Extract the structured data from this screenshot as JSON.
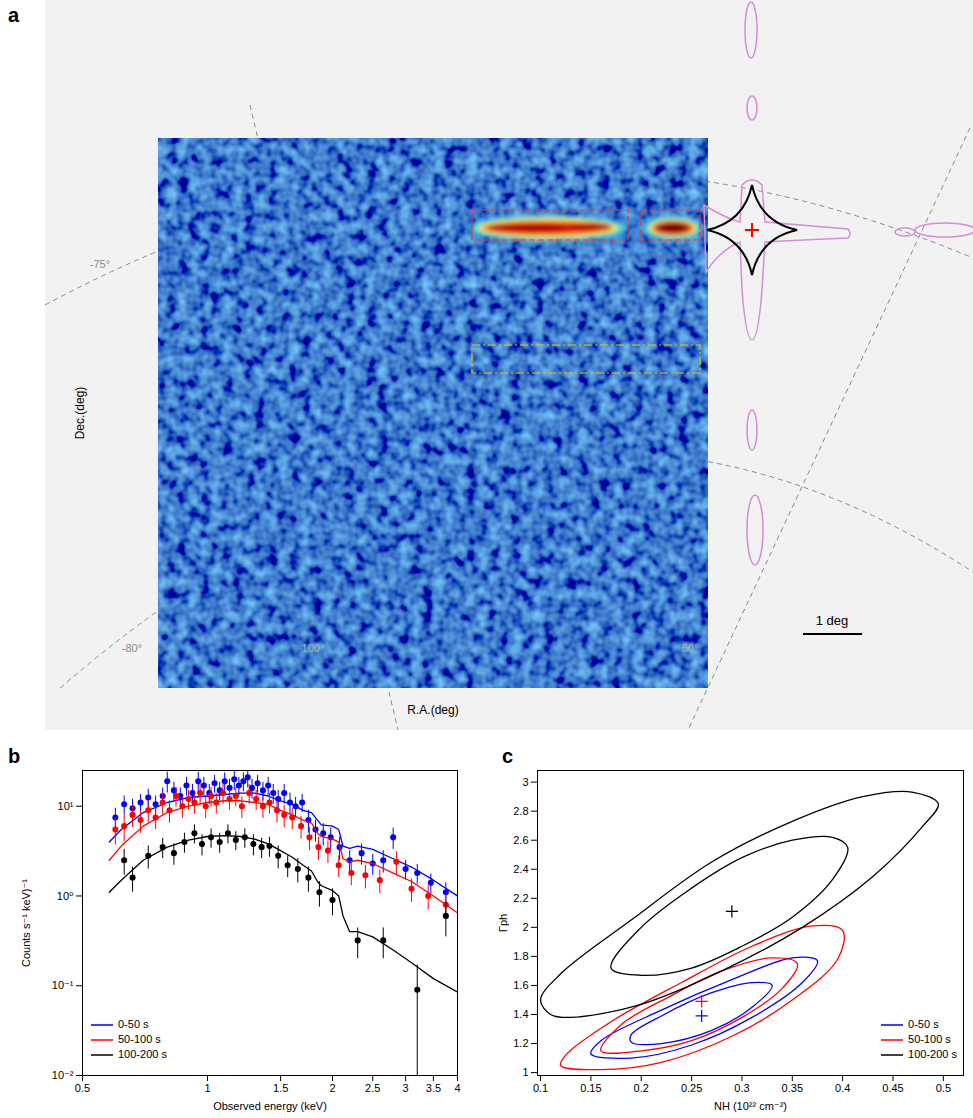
{
  "chart_data": [
    {
      "panel": "a",
      "type": "image",
      "xlabel": "R.A.(deg)",
      "ylabel": "Dec.(deg)",
      "annotations": [
        "-75°",
        "-80°",
        "100°",
        "50°"
      ],
      "scale_bar": "1 deg"
    },
    {
      "panel": "b",
      "type": "scatter",
      "xlabel": "Observed energy (keV)",
      "ylabel": "Counts s⁻¹ keV)⁻¹",
      "log": true,
      "xlim": [
        0.5,
        4
      ],
      "ylim": [
        0.01,
        25
      ],
      "xticks": [
        0.5,
        1,
        1.5,
        2,
        2.5,
        3,
        3.5,
        4
      ],
      "yticks": [
        {
          "value": 0.01,
          "label": "10⁻²"
        },
        {
          "value": 0.1,
          "label": "10⁻¹"
        },
        {
          "value": 1,
          "label": "10⁰"
        },
        {
          "value": 10,
          "label": "10¹"
        }
      ],
      "legend": "bottom-left",
      "marker": "circle",
      "series": [
        {
          "name": "0-50 s",
          "color": "#0000ff",
          "x": [
            0.6,
            0.63,
            0.66,
            0.69,
            0.72,
            0.75,
            0.78,
            0.8,
            0.83,
            0.86,
            0.89,
            0.92,
            0.95,
            0.98,
            1.01,
            1.04,
            1.07,
            1.1,
            1.13,
            1.16,
            1.19,
            1.22,
            1.25,
            1.28,
            1.32,
            1.36,
            1.4,
            1.44,
            1.48,
            1.53,
            1.58,
            1.63,
            1.69,
            1.75,
            1.82,
            1.9,
            1.98,
            2.08,
            2.2,
            2.35,
            2.5,
            2.65,
            2.8,
            3.0,
            3.2,
            3.45,
            3.75
          ],
          "values": [
            7.5,
            10.5,
            9.5,
            11,
            12.5,
            10.5,
            13,
            19,
            15,
            13,
            17,
            14,
            19,
            17,
            14,
            18,
            15,
            19,
            16,
            20,
            17,
            19,
            21,
            16,
            18,
            15,
            17,
            14,
            12,
            14,
            11,
            10,
            11,
            7,
            5.5,
            5,
            4.5,
            3.5,
            2.5,
            3.0,
            2.3,
            2.5,
            4.5,
            2.0,
            1.8,
            1.4,
            1.1
          ],
          "yerr": [
            2,
            2.5,
            2.5,
            2.5,
            3,
            2.5,
            3,
            5,
            3.5,
            3,
            4,
            3.5,
            5,
            4,
            3.5,
            4,
            3.5,
            4.5,
            4,
            5,
            4,
            4.5,
            5,
            4,
            4,
            3.5,
            4,
            3.5,
            3,
            3.5,
            3,
            2.5,
            2.5,
            2,
            1.5,
            1.4,
            1.2,
            1,
            0.7,
            0.8,
            0.6,
            0.7,
            1.2,
            0.5,
            0.45,
            0.35,
            0.3
          ],
          "model": {
            "x": [
              0.58,
              0.62,
              0.7,
              0.8,
              0.9,
              1.0,
              1.1,
              1.2,
              1.3,
              1.4,
              1.5,
              1.6,
              1.7,
              1.78,
              1.84,
              1.88,
              2.0,
              2.07,
              2.12,
              2.2,
              2.3,
              2.5,
              2.8,
              3.1,
              3.5,
              4.0
            ],
            "values": [
              4,
              5.5,
              8.5,
              11,
              12.5,
              13,
              13.5,
              14,
              14,
              13,
              11.5,
              10.5,
              9,
              8.5,
              7.0,
              6.2,
              6.0,
              5.5,
              3.6,
              3.4,
              3.6,
              3.3,
              2.6,
              2.1,
              1.5,
              1.0
            ]
          }
        },
        {
          "name": "50-100 s",
          "color": "#ff0000",
          "x": [
            0.6,
            0.63,
            0.66,
            0.69,
            0.72,
            0.75,
            0.78,
            0.81,
            0.84,
            0.87,
            0.9,
            0.93,
            0.96,
            0.99,
            1.02,
            1.05,
            1.09,
            1.13,
            1.17,
            1.21,
            1.26,
            1.31,
            1.36,
            1.41,
            1.47,
            1.53,
            1.6,
            1.68,
            1.76,
            1.85,
            1.95,
            2.07,
            2.22,
            2.4,
            2.6,
            2.85,
            3.1,
            3.4,
            3.75
          ],
          "values": [
            5.5,
            6,
            8,
            7,
            9,
            7.5,
            11,
            9,
            13,
            10,
            12,
            11,
            14,
            10,
            13,
            11,
            14,
            12,
            13,
            10,
            14,
            12,
            10,
            11,
            9,
            8,
            7.5,
            6,
            4.5,
            3.5,
            3.2,
            2.2,
            1.8,
            1.7,
            1.5,
            2.4,
            1.2,
            1.0,
            0.8
          ],
          "yerr": [
            1.8,
            2,
            2.2,
            2,
            2.5,
            2,
            3,
            2.5,
            3.2,
            2.7,
            3,
            2.8,
            3.5,
            2.7,
            3.2,
            2.8,
            3.5,
            3,
            3.2,
            2.7,
            3.5,
            3,
            2.7,
            2.8,
            2.5,
            2.2,
            2,
            1.7,
            1.3,
            1,
            0.9,
            0.6,
            0.5,
            0.5,
            0.45,
            0.7,
            0.35,
            0.3,
            0.25
          ],
          "model": {
            "x": [
              0.58,
              0.62,
              0.7,
              0.8,
              0.9,
              1.0,
              1.1,
              1.2,
              1.3,
              1.4,
              1.5,
              1.6,
              1.7,
              1.78,
              1.84,
              1.88,
              2.0,
              2.07,
              2.12,
              2.2,
              2.3,
              2.5,
              2.8,
              3.1,
              3.5,
              4.0
            ],
            "values": [
              2.5,
              3.6,
              6,
              8.5,
              10,
              11,
              11.5,
              11.5,
              11,
              10.5,
              9,
              8,
              7,
              6.5,
              5.0,
              4.6,
              4.3,
              4.0,
              2.6,
              2.4,
              2.5,
              2.3,
              1.8,
              1.45,
              1.0,
              0.65
            ]
          }
        },
        {
          "name": "100-200 s",
          "color": "#000000",
          "x": [
            0.63,
            0.66,
            0.72,
            0.78,
            0.83,
            0.88,
            0.93,
            0.97,
            1.02,
            1.07,
            1.12,
            1.17,
            1.23,
            1.29,
            1.35,
            1.41,
            1.48,
            1.56,
            1.65,
            1.75,
            1.86,
            2.0,
            2.3,
            2.65,
            3.2,
            3.75
          ],
          "values": [
            2.5,
            1.6,
            2.8,
            3.5,
            3.0,
            4.0,
            5.0,
            3.8,
            4.5,
            4.0,
            5.0,
            4.2,
            4.5,
            3.8,
            3.5,
            3.6,
            2.8,
            2.2,
            2.0,
            1.6,
            1.1,
            0.9,
            0.32,
            0.32,
            0.09,
            0.6
          ],
          "yerr": [
            0.8,
            0.5,
            0.8,
            0.9,
            0.8,
            1.0,
            1.2,
            1.0,
            1.1,
            1.0,
            1.2,
            1.0,
            1.1,
            1.0,
            0.9,
            0.9,
            0.8,
            0.6,
            0.6,
            0.5,
            0.35,
            0.3,
            0.12,
            0.12,
            0.08,
            0.25
          ],
          "model": {
            "x": [
              0.58,
              0.62,
              0.7,
              0.8,
              0.9,
              1.0,
              1.1,
              1.2,
              1.3,
              1.4,
              1.5,
              1.6,
              1.7,
              1.78,
              1.84,
              1.88,
              2.0,
              2.07,
              2.12,
              2.2,
              2.3,
              2.5,
              2.8,
              3.1,
              3.5,
              4.0
            ],
            "values": [
              1.1,
              1.5,
              2.5,
              3.5,
              4.2,
              4.6,
              4.7,
              4.6,
              4.3,
              3.8,
              3.2,
              2.7,
              2.2,
              1.9,
              1.45,
              1.3,
              1.15,
              1.0,
              0.6,
              0.4,
              0.4,
              0.35,
              0.25,
              0.18,
              0.12,
              0.085
            ]
          }
        }
      ]
    },
    {
      "panel": "c",
      "type": "contour",
      "xlabel": "NH (10²² cm⁻²)",
      "ylabel": "Γph",
      "xlim": [
        0.097,
        0.52
      ],
      "ylim": [
        0.98,
        3.08
      ],
      "xticks": [
        0.1,
        0.15,
        0.2,
        0.25,
        0.3,
        0.35,
        0.4,
        0.45,
        0.5
      ],
      "yticks": [
        1,
        1.2,
        1.4,
        1.6,
        1.8,
        2,
        2.2,
        2.4,
        2.6,
        2.8,
        3
      ],
      "legend": "bottom-right",
      "marker": "plus",
      "series": [
        {
          "name": "0-50 s",
          "color": "#0000ff",
          "best_fit": {
            "x": 0.26,
            "y": 1.39
          },
          "contours": [
            {
              "x": [
                0.19,
                0.22,
                0.27,
                0.31,
                0.33,
                0.31,
                0.27,
                0.22,
                0.19
              ],
              "y": [
                1.21,
                1.2,
                1.29,
                1.45,
                1.6,
                1.62,
                1.55,
                1.39,
                1.26
              ]
            },
            {
              "x": [
                0.15,
                0.19,
                0.25,
                0.31,
                0.36,
                0.375,
                0.35,
                0.29,
                0.22,
                0.16
              ],
              "y": [
                1.13,
                1.1,
                1.19,
                1.38,
                1.62,
                1.77,
                1.79,
                1.64,
                1.43,
                1.22
              ]
            }
          ]
        },
        {
          "name": "50-100 s",
          "color": "#ff0000",
          "best_fit": {
            "x": 0.26,
            "y": 1.49
          },
          "contours": [
            {
              "x": [
                0.16,
                0.2,
                0.25,
                0.3,
                0.34,
                0.355,
                0.33,
                0.28,
                0.23,
                0.18
              ],
              "y": [
                1.15,
                1.15,
                1.22,
                1.38,
                1.58,
                1.75,
                1.79,
                1.7,
                1.53,
                1.33
              ]
            },
            {
              "x": [
                0.12,
                0.16,
                0.22,
                0.29,
                0.35,
                0.395,
                0.4,
                0.37,
                0.31,
                0.24,
                0.17,
                0.125
              ],
              "y": [
                1.05,
                1.02,
                1.07,
                1.25,
                1.5,
                1.78,
                1.98,
                2.01,
                1.87,
                1.62,
                1.35,
                1.12
              ]
            }
          ]
        },
        {
          "name": "100-200 s",
          "color": "#000000",
          "best_fit": {
            "x": 0.29,
            "y": 2.11
          },
          "contours": [
            {
              "x": [
                0.17,
                0.2,
                0.25,
                0.3,
                0.35,
                0.39,
                0.405,
                0.39,
                0.35,
                0.3,
                0.25,
                0.2
              ],
              "y": [
                1.72,
                1.67,
                1.72,
                1.87,
                2.07,
                2.33,
                2.55,
                2.62,
                2.6,
                2.48,
                2.27,
                2.0
              ]
            },
            {
              "x": [
                0.11,
                0.13,
                0.2,
                0.28,
                0.36,
                0.43,
                0.48,
                0.495,
                0.47,
                0.42,
                0.35,
                0.27,
                0.19,
                0.12,
                0.1
              ],
              "y": [
                1.4,
                1.38,
                1.47,
                1.7,
                2.0,
                2.35,
                2.7,
                2.85,
                2.93,
                2.9,
                2.73,
                2.45,
                2.05,
                1.68,
                1.5
              ]
            }
          ]
        }
      ]
    }
  ]
}
